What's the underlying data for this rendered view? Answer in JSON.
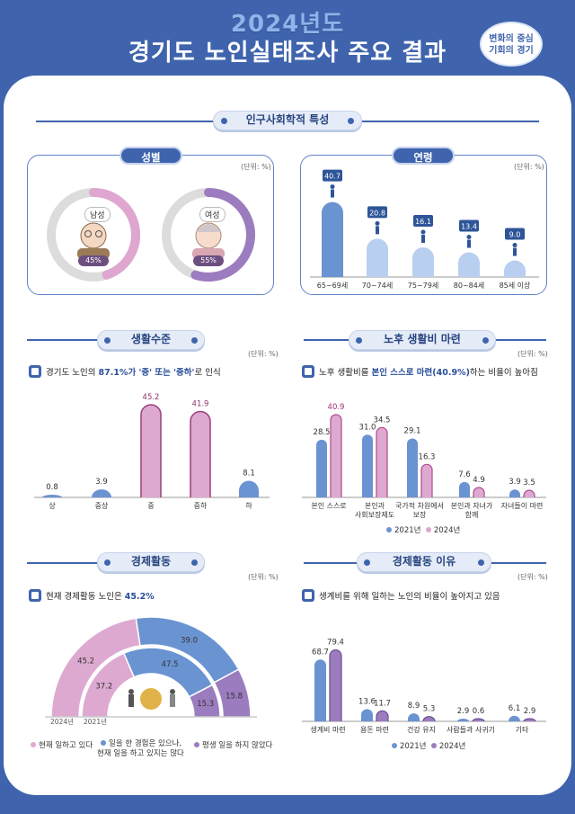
{
  "header": {
    "year": "2024년도",
    "title": "경기도 노인실태조사 주요 결과",
    "badge_line1": "변화의 중심",
    "badge_line2": "기회의 경기"
  },
  "colors": {
    "blue": "#6a93d2",
    "light_blue": "#b9cff0",
    "pink": "#dea9d0",
    "purple": "#9b7cbf",
    "navy": "#3f64ad"
  },
  "section_demo": {
    "title": "인구사회학적 특성"
  },
  "gender": {
    "title": "성별",
    "unit": "(단위: %)",
    "male_label": "남성",
    "male_pct": "45%",
    "female_label": "여성",
    "female_pct": "55%"
  },
  "age": {
    "title": "연령",
    "unit": "(단위: %)"
  },
  "living": {
    "title": "생활수준",
    "unit": "(단위: %)",
    "note_pre": "경기도 노인의 ",
    "note_bold": "87.1%가 '중' 또는 '중하'",
    "note_post": "로 인식"
  },
  "retire": {
    "title": "노후 생활비 마련",
    "unit": "(단위: %)",
    "note_pre": "노후 생활비를 ",
    "note_bold": "본인 스스로 마련(40.9%)",
    "note_post": "하는 비율이 높아짐",
    "legend_2021": "2021년",
    "legend_2024": "2024년"
  },
  "econ": {
    "title": "경제활동",
    "unit": "(단위: %)",
    "note_pre": "현재 경제활동 노인은 ",
    "note_bold": "45.2%",
    "year_outer": "2024년",
    "year_inner": "2021년",
    "legend_a": "현재 일하고 있다",
    "legend_b1": "일을 한 경험은 있으나,",
    "legend_b2": "현재 일을 하고 있지는 않다",
    "legend_c": "평생 일을 하지 않았다"
  },
  "reason": {
    "title": "경제활동 이유",
    "unit": "(단위: %)",
    "note_pre": "생계비를 위해 일하는 노인의 비율이 높아지고 있음",
    "legend_2021": "2021년",
    "legend_2024": "2024년"
  },
  "chart_data": [
    {
      "type": "pie",
      "name": "성별",
      "labels": [
        "남성",
        "여성"
      ],
      "values": [
        45,
        55
      ]
    },
    {
      "type": "bar",
      "name": "연령",
      "categories": [
        "65~69세",
        "70~74세",
        "75~79세",
        "80~84세",
        "85세 이상"
      ],
      "values": [
        40.7,
        20.8,
        16.1,
        13.4,
        9.0
      ]
    },
    {
      "type": "bar",
      "name": "생활수준",
      "categories": [
        "상",
        "중상",
        "중",
        "중하",
        "하"
      ],
      "values": [
        0.8,
        3.9,
        45.2,
        41.9,
        8.1
      ]
    },
    {
      "type": "bar",
      "name": "노후 생활비 마련",
      "categories": [
        [
          "본인 스스로"
        ],
        [
          "본인과",
          "사회보장제도"
        ],
        [
          "국가적 차원에서",
          "보장"
        ],
        [
          "본인과 자녀가",
          "함께"
        ],
        [
          "자녀들이 마련"
        ]
      ],
      "series": [
        {
          "name": "2021년",
          "values": [
            28.5,
            31.0,
            29.1,
            7.6,
            3.9
          ]
        },
        {
          "name": "2024년",
          "values": [
            40.9,
            34.5,
            16.3,
            4.9,
            3.5
          ]
        }
      ]
    },
    {
      "type": "pie",
      "name": "경제활동",
      "labels": [
        "현재 일하고 있다",
        "일을 한 경험은 있으나, 현재 일을 하고 있지는 않다",
        "평생 일을 하지 않았다"
      ],
      "series": [
        {
          "name": "2024년",
          "values": [
            45.2,
            39.0,
            15.8
          ]
        },
        {
          "name": "2021년",
          "values": [
            37.2,
            47.5,
            15.3
          ]
        }
      ]
    },
    {
      "type": "bar",
      "name": "경제활동 이유",
      "categories": [
        [
          "생계비 마련"
        ],
        [
          "용돈 마련"
        ],
        [
          "건강 유지"
        ],
        [
          "사람들과 사귀기"
        ],
        [
          "기타"
        ]
      ],
      "series": [
        {
          "name": "2021년",
          "values": [
            68.7,
            13.6,
            8.9,
            2.9,
            6.1
          ]
        },
        {
          "name": "2024년",
          "values": [
            79.4,
            11.7,
            5.3,
            0.6,
            2.9
          ]
        }
      ]
    }
  ]
}
